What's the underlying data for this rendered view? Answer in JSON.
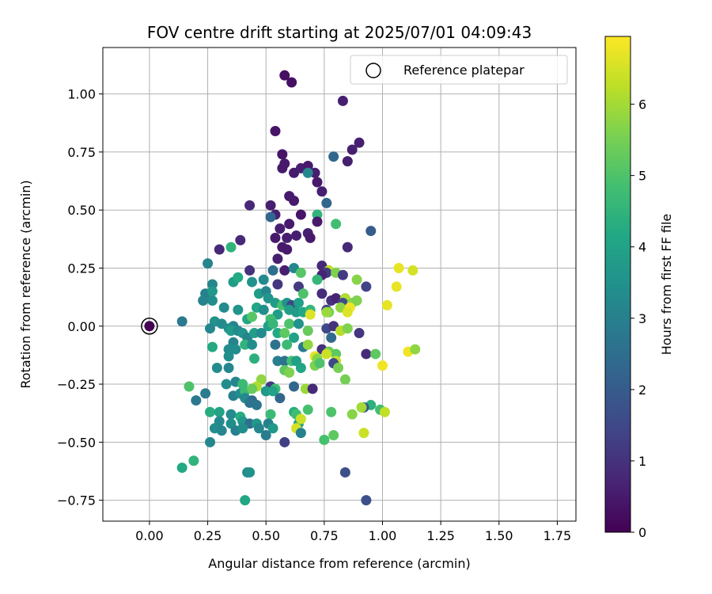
{
  "chart_data": {
    "type": "scatter",
    "title": "FOV centre drift starting at 2025/07/01 04:09:43",
    "xlabel": "Angular distance from reference (arcmin)",
    "ylabel": "Rotation from reference (arcmin)",
    "xlim": [
      -0.2,
      1.83
    ],
    "ylim": [
      -0.84,
      1.2
    ],
    "xticks": [
      0.0,
      0.25,
      0.5,
      0.75,
      1.0,
      1.25,
      1.5,
      1.75
    ],
    "xtick_labels": [
      "0.00",
      "0.25",
      "0.50",
      "0.75",
      "1.00",
      "1.25",
      "1.50",
      "1.75"
    ],
    "yticks": [
      -0.75,
      -0.5,
      -0.25,
      0.0,
      0.25,
      0.5,
      0.75,
      1.0
    ],
    "ytick_labels": [
      "−0.75",
      "−0.50",
      "−0.25",
      "0.00",
      "0.25",
      "0.50",
      "0.75",
      "1.00"
    ],
    "grid": true,
    "legend": {
      "placement": "top-right",
      "label": "Reference platepar"
    },
    "reference_point": {
      "x": 0.0,
      "y": 0.0,
      "color_value": 0.0
    },
    "colorbar": {
      "label": "Hours from first FF file",
      "colormap": "viridis",
      "range": [
        0,
        6.95
      ],
      "ticks": [
        0,
        1,
        2,
        3,
        4,
        5,
        6
      ],
      "tick_labels": [
        "0",
        "1",
        "2",
        "3",
        "4",
        "5",
        "6"
      ]
    },
    "points": [
      [
        0.58,
        1.08,
        0.3
      ],
      [
        0.61,
        1.05,
        0.3
      ],
      [
        0.83,
        0.97,
        0.6
      ],
      [
        0.54,
        0.84,
        0.4
      ],
      [
        0.9,
        0.79,
        0.6
      ],
      [
        0.87,
        0.76,
        0.6
      ],
      [
        0.57,
        0.74,
        0.4
      ],
      [
        0.85,
        0.71,
        0.6
      ],
      [
        0.79,
        0.73,
        2.3
      ],
      [
        0.62,
        0.66,
        0.5
      ],
      [
        0.58,
        0.7,
        0.5
      ],
      [
        0.57,
        0.68,
        0.5
      ],
      [
        0.65,
        0.68,
        0.6
      ],
      [
        0.68,
        0.69,
        0.5
      ],
      [
        0.71,
        0.66,
        0.6
      ],
      [
        0.68,
        0.66,
        3.2
      ],
      [
        0.72,
        0.62,
        0.5
      ],
      [
        0.74,
        0.58,
        0.6
      ],
      [
        0.6,
        0.56,
        0.5
      ],
      [
        0.62,
        0.54,
        0.5
      ],
      [
        0.76,
        0.53,
        2.3
      ],
      [
        0.43,
        0.52,
        0.8
      ],
      [
        0.52,
        0.52,
        0.6
      ],
      [
        0.54,
        0.48,
        0.6
      ],
      [
        0.52,
        0.47,
        2.3
      ],
      [
        0.65,
        0.48,
        0.4
      ],
      [
        0.72,
        0.48,
        4.5
      ],
      [
        0.72,
        0.45,
        0.5
      ],
      [
        0.6,
        0.44,
        0.5
      ],
      [
        0.56,
        0.42,
        0.6
      ],
      [
        0.8,
        0.44,
        4.8
      ],
      [
        0.63,
        0.39,
        0.6
      ],
      [
        0.68,
        0.4,
        0.6
      ],
      [
        0.54,
        0.38,
        0.5
      ],
      [
        0.59,
        0.38,
        0.6
      ],
      [
        0.69,
        0.38,
        0.5
      ],
      [
        0.95,
        0.41,
        2.0
      ],
      [
        0.39,
        0.37,
        0.8
      ],
      [
        0.3,
        0.33,
        0.8
      ],
      [
        0.35,
        0.34,
        4.5
      ],
      [
        0.57,
        0.34,
        0.5
      ],
      [
        0.59,
        0.33,
        0.5
      ],
      [
        0.85,
        0.34,
        0.8
      ],
      [
        0.55,
        0.29,
        0.6
      ],
      [
        0.25,
        0.27,
        3.1
      ],
      [
        0.74,
        0.26,
        0.8
      ],
      [
        0.43,
        0.24,
        1.0
      ],
      [
        0.53,
        0.24,
        2.5
      ],
      [
        0.58,
        0.24,
        0.6
      ],
      [
        0.62,
        0.25,
        3.2
      ],
      [
        0.77,
        0.24,
        6.3
      ],
      [
        0.76,
        0.23,
        1.2
      ],
      [
        0.8,
        0.23,
        5.6
      ],
      [
        0.65,
        0.23,
        5.1
      ],
      [
        0.74,
        0.22,
        0.7
      ],
      [
        0.72,
        0.2,
        4.6
      ],
      [
        0.83,
        0.22,
        1.2
      ],
      [
        0.89,
        0.2,
        5.7
      ],
      [
        0.93,
        0.17,
        1.4
      ],
      [
        1.07,
        0.25,
        6.7
      ],
      [
        1.13,
        0.24,
        6.5
      ],
      [
        1.06,
        0.17,
        6.7
      ],
      [
        0.27,
        0.18,
        3.2
      ],
      [
        0.36,
        0.19,
        3.8
      ],
      [
        0.38,
        0.21,
        4.2
      ],
      [
        0.44,
        0.19,
        3.5
      ],
      [
        0.49,
        0.2,
        3.3
      ],
      [
        0.55,
        0.18,
        1.1
      ],
      [
        0.64,
        0.17,
        1.2
      ],
      [
        0.24,
        0.14,
        3.0
      ],
      [
        0.27,
        0.15,
        3.7
      ],
      [
        0.47,
        0.14,
        3.8
      ],
      [
        0.5,
        0.15,
        3.2
      ],
      [
        0.66,
        0.14,
        5.0
      ],
      [
        0.74,
        0.14,
        0.9
      ],
      [
        0.27,
        0.11,
        3.4
      ],
      [
        0.32,
        0.08,
        3.3
      ],
      [
        0.38,
        0.07,
        3.6
      ],
      [
        0.23,
        0.11,
        3.1
      ],
      [
        0.51,
        0.12,
        3.6
      ],
      [
        0.54,
        0.1,
        3.8
      ],
      [
        0.57,
        0.09,
        4.9
      ],
      [
        0.59,
        0.1,
        3.6
      ],
      [
        0.61,
        0.09,
        1.5
      ],
      [
        0.64,
        0.1,
        3.9
      ],
      [
        0.78,
        0.11,
        1.0
      ],
      [
        0.8,
        0.12,
        0.7
      ],
      [
        0.84,
        0.12,
        6.1
      ],
      [
        0.83,
        0.1,
        1.6
      ],
      [
        0.87,
        0.1,
        5.7
      ],
      [
        0.89,
        0.11,
        5.6
      ],
      [
        0.82,
        0.08,
        5.8
      ],
      [
        1.02,
        0.09,
        6.7
      ],
      [
        0.86,
        0.08,
        6.8
      ],
      [
        0.46,
        0.08,
        4.1
      ],
      [
        0.49,
        0.07,
        3.4
      ],
      [
        0.55,
        0.05,
        3.8
      ],
      [
        0.6,
        0.07,
        3.9
      ],
      [
        0.63,
        0.06,
        3.8
      ],
      [
        0.66,
        0.06,
        4.1
      ],
      [
        0.69,
        0.07,
        4.6
      ],
      [
        0.76,
        0.07,
        1.3
      ],
      [
        0.77,
        0.06,
        5.5
      ],
      [
        0.69,
        0.05,
        6.6
      ],
      [
        0.76,
        0.06,
        5.9
      ],
      [
        0.85,
        0.06,
        6.6
      ],
      [
        0.14,
        0.02,
        2.8
      ],
      [
        0.28,
        0.02,
        3.5
      ],
      [
        0.31,
        0.01,
        3.3
      ],
      [
        0.36,
        0.0,
        3.1
      ],
      [
        0.42,
        0.03,
        4.1
      ],
      [
        0.44,
        0.04,
        5.1
      ],
      [
        0.52,
        0.03,
        4.8
      ],
      [
        0.51,
        0.0,
        3.9
      ],
      [
        0.53,
        0.01,
        4.6
      ],
      [
        0.6,
        0.01,
        5.0
      ],
      [
        0.64,
        0.01,
        3.5
      ],
      [
        0.76,
        -0.01,
        1.5
      ],
      [
        0.79,
        0.0,
        1.0
      ],
      [
        0.82,
        -0.02,
        6.2
      ],
      [
        0.85,
        -0.01,
        5.6
      ],
      [
        0.9,
        -0.03,
        1.1
      ],
      [
        0.26,
        -0.01,
        3.2
      ],
      [
        0.34,
        -0.01,
        3.4
      ],
      [
        0.35,
        -0.02,
        3.8
      ],
      [
        0.38,
        -0.02,
        3.3
      ],
      [
        0.4,
        -0.03,
        3.6
      ],
      [
        0.42,
        -0.05,
        3.1
      ],
      [
        0.45,
        -0.03,
        3.9
      ],
      [
        0.48,
        -0.03,
        3.3
      ],
      [
        0.55,
        -0.03,
        4.2
      ],
      [
        0.58,
        -0.03,
        5.2
      ],
      [
        0.62,
        -0.05,
        4.0
      ],
      [
        0.68,
        -0.02,
        5.3
      ],
      [
        0.78,
        -0.05,
        2.4
      ],
      [
        0.27,
        -0.09,
        4.2
      ],
      [
        0.36,
        -0.07,
        3.1
      ],
      [
        0.41,
        -0.08,
        4.5
      ],
      [
        0.44,
        -0.08,
        3.4
      ],
      [
        0.34,
        -0.1,
        3.3
      ],
      [
        0.37,
        -0.1,
        3.4
      ],
      [
        0.54,
        -0.08,
        2.6
      ],
      [
        0.59,
        -0.08,
        4.7
      ],
      [
        0.66,
        -0.09,
        2.9
      ],
      [
        0.68,
        -0.08,
        5.8
      ],
      [
        0.74,
        -0.1,
        1.0
      ],
      [
        0.77,
        -0.11,
        5.4
      ],
      [
        0.8,
        -0.12,
        5.2
      ],
      [
        0.93,
        -0.12,
        0.8
      ],
      [
        0.97,
        -0.12,
        5.2
      ],
      [
        1.11,
        -0.11,
        6.8
      ],
      [
        1.14,
        -0.1,
        5.8
      ],
      [
        0.34,
        -0.13,
        3.4
      ],
      [
        0.45,
        -0.14,
        4.4
      ],
      [
        0.55,
        -0.15,
        3.0
      ],
      [
        0.58,
        -0.15,
        2.6
      ],
      [
        0.61,
        -0.15,
        4.8
      ],
      [
        0.63,
        -0.15,
        3.9
      ],
      [
        0.71,
        -0.13,
        6.7
      ],
      [
        0.72,
        -0.14,
        5.7
      ],
      [
        0.76,
        -0.12,
        6.4
      ],
      [
        0.8,
        -0.15,
        6.3
      ],
      [
        0.29,
        -0.18,
        3.3
      ],
      [
        0.34,
        -0.18,
        3.2
      ],
      [
        0.58,
        -0.19,
        5.2
      ],
      [
        0.65,
        -0.18,
        4.1
      ],
      [
        0.71,
        -0.17,
        5.6
      ],
      [
        0.73,
        -0.16,
        5.0
      ],
      [
        0.79,
        -0.16,
        1.5
      ],
      [
        0.81,
        -0.18,
        5.5
      ],
      [
        1.0,
        -0.17,
        6.8
      ],
      [
        0.6,
        -0.2,
        5.6
      ],
      [
        0.84,
        -0.23,
        5.5
      ],
      [
        0.17,
        -0.26,
        5.0
      ],
      [
        0.33,
        -0.25,
        3.4
      ],
      [
        0.37,
        -0.24,
        3.2
      ],
      [
        0.4,
        -0.25,
        4.7
      ],
      [
        0.48,
        -0.23,
        5.8
      ],
      [
        0.46,
        -0.26,
        6.1
      ],
      [
        0.52,
        -0.26,
        1.2
      ],
      [
        0.54,
        -0.27,
        4.8
      ],
      [
        0.62,
        -0.26,
        2.3
      ],
      [
        0.67,
        -0.27,
        5.9
      ],
      [
        0.7,
        -0.27,
        0.8
      ],
      [
        0.36,
        -0.3,
        3.0
      ],
      [
        0.39,
        -0.29,
        3.3
      ],
      [
        0.41,
        -0.28,
        4.7
      ],
      [
        0.44,
        -0.27,
        5.3
      ],
      [
        0.5,
        -0.28,
        3.7
      ],
      [
        0.53,
        -0.28,
        4.0
      ],
      [
        0.2,
        -0.32,
        2.8
      ],
      [
        0.24,
        -0.29,
        2.9
      ],
      [
        0.41,
        -0.31,
        3.3
      ],
      [
        0.44,
        -0.32,
        2.4
      ],
      [
        0.43,
        -0.33,
        2.6
      ],
      [
        0.46,
        -0.34,
        2.7
      ],
      [
        0.56,
        -0.31,
        2.3
      ],
      [
        0.95,
        -0.34,
        4.4
      ],
      [
        0.92,
        -0.35,
        1.8
      ],
      [
        0.91,
        -0.35,
        6.0
      ],
      [
        0.26,
        -0.37,
        4.3
      ],
      [
        0.3,
        -0.37,
        4.0
      ],
      [
        0.35,
        -0.38,
        3.3
      ],
      [
        0.39,
        -0.39,
        4.3
      ],
      [
        0.52,
        -0.38,
        4.7
      ],
      [
        0.62,
        -0.37,
        4.3
      ],
      [
        0.63,
        -0.38,
        4.8
      ],
      [
        0.68,
        -0.36,
        4.9
      ],
      [
        0.78,
        -0.37,
        5.0
      ],
      [
        0.87,
        -0.38,
        5.7
      ],
      [
        0.99,
        -0.36,
        4.8
      ],
      [
        1.01,
        -0.37,
        6.3
      ],
      [
        0.3,
        -0.41,
        3.3
      ],
      [
        0.35,
        -0.42,
        3.4
      ],
      [
        0.4,
        -0.41,
        3.7
      ],
      [
        0.43,
        -0.42,
        2.5
      ],
      [
        0.46,
        -0.42,
        3.7
      ],
      [
        0.47,
        -0.44,
        3.2
      ],
      [
        0.51,
        -0.42,
        3.0
      ],
      [
        0.64,
        -0.42,
        4.0
      ],
      [
        0.65,
        -0.4,
        6.4
      ],
      [
        0.28,
        -0.44,
        3.4
      ],
      [
        0.31,
        -0.45,
        3.2
      ],
      [
        0.37,
        -0.45,
        3.0
      ],
      [
        0.4,
        -0.44,
        3.4
      ],
      [
        0.53,
        -0.44,
        3.7
      ],
      [
        0.63,
        -0.44,
        6.5
      ],
      [
        0.65,
        -0.46,
        3.0
      ],
      [
        0.5,
        -0.47,
        2.9
      ],
      [
        0.79,
        -0.47,
        5.2
      ],
      [
        0.92,
        -0.46,
        6.4
      ],
      [
        0.26,
        -0.5,
        3.2
      ],
      [
        0.58,
        -0.5,
        1.3
      ],
      [
        0.75,
        -0.49,
        4.9
      ],
      [
        0.14,
        -0.61,
        4.2
      ],
      [
        0.19,
        -0.58,
        4.5
      ],
      [
        0.42,
        -0.63,
        3.3
      ],
      [
        0.43,
        -0.63,
        3.5
      ],
      [
        0.84,
        -0.63,
        1.7
      ],
      [
        0.41,
        -0.75,
        4.1
      ],
      [
        0.93,
        -0.75,
        1.7
      ]
    ]
  }
}
